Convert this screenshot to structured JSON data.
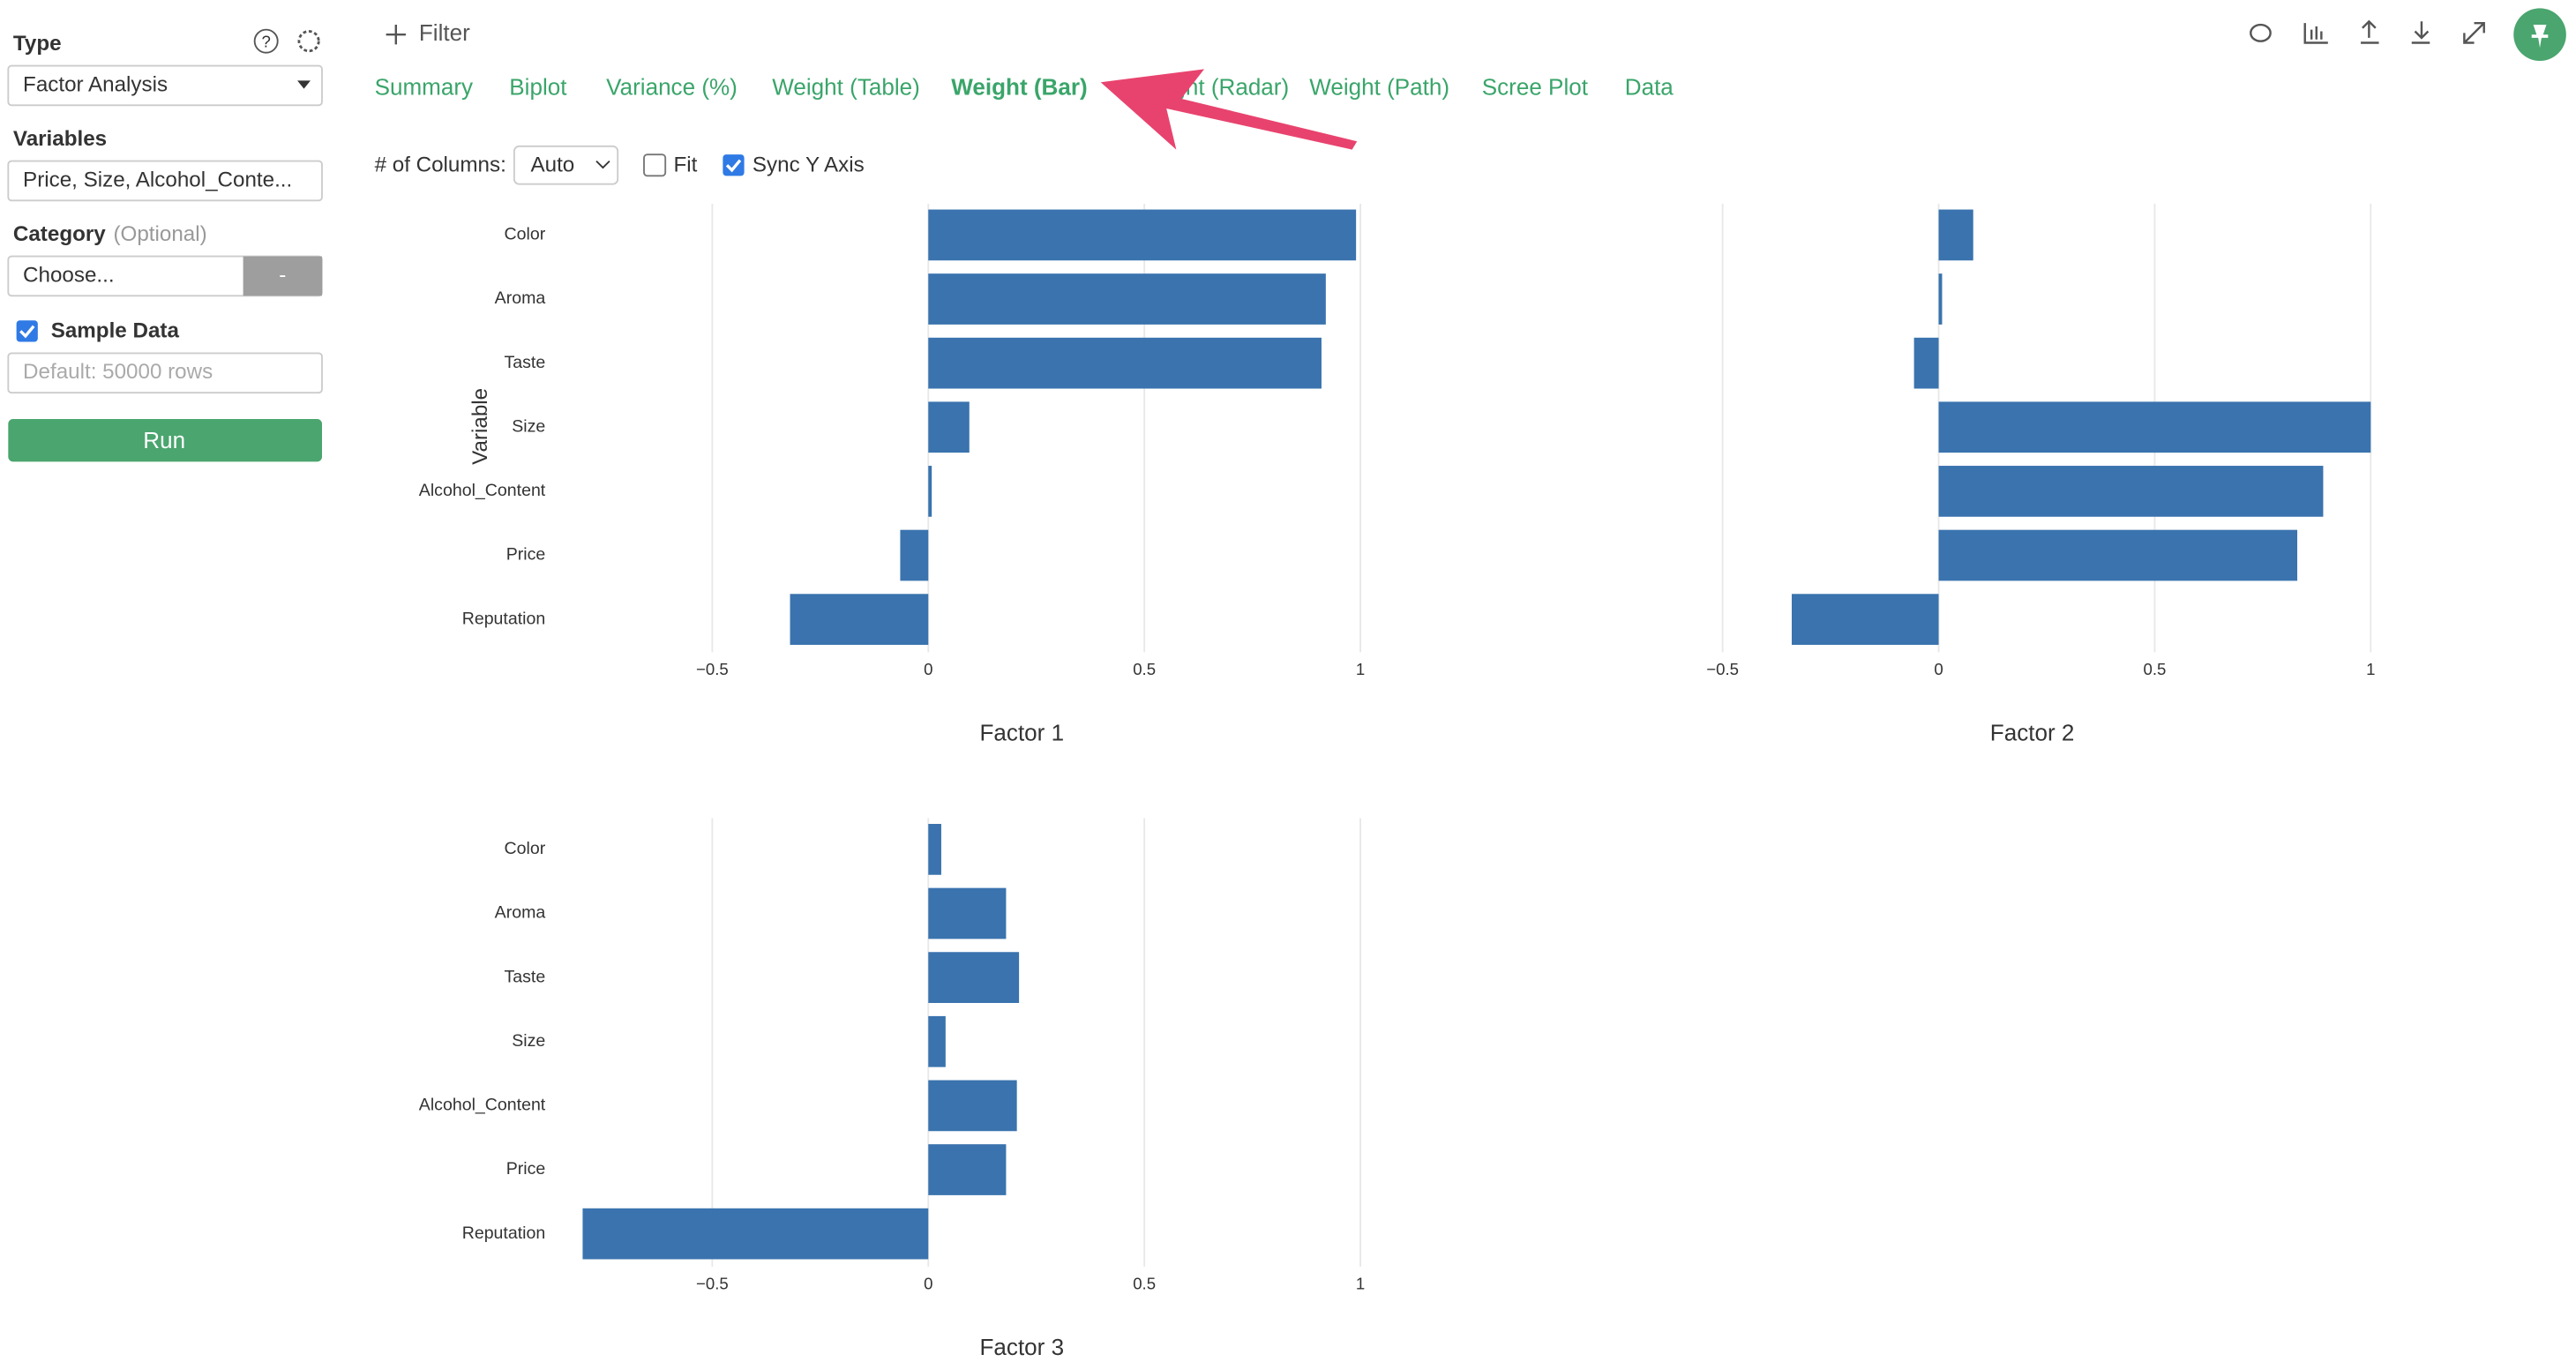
{
  "ui": {
    "sidebar": {
      "type_label": "Type",
      "type_value": "Factor Analysis",
      "variables_label": "Variables",
      "variables_value": "Price, Size, Alcohol_Conte...",
      "category_label": "Category",
      "category_optional": "(Optional)",
      "category_value": "Choose...",
      "category_button": "-",
      "sample_label": "Sample Data",
      "sample_placeholder": "Default: 50000 rows",
      "run": "Run"
    },
    "filter": "Filter",
    "tabs": [
      "Summary",
      "Biplot",
      "Variance (%)",
      "Weight (Table)",
      "Weight (Bar)",
      "Weight (Radar)",
      "Weight (Path)",
      "Scree Plot",
      "Data"
    ],
    "columns_label": "# of Columns:",
    "columns_value": "Auto",
    "fit": "Fit",
    "sync": "Sync Y Axis"
  },
  "chart_data": [
    {
      "type": "bar",
      "orientation": "horizontal",
      "title": "Factor 1",
      "y_label": "Variable",
      "color": "#3a73ae",
      "categories": [
        "Color",
        "Aroma",
        "Taste",
        "Size",
        "Alcohol_Content",
        "Price",
        "Reputation"
      ],
      "values": [
        0.99,
        0.92,
        0.91,
        0.095,
        0.008,
        -0.065,
        -0.32
      ],
      "xlim": [
        -0.85,
        1.05
      ],
      "xticks": [
        {
          "value": -0.5,
          "label": "−0.5"
        },
        0,
        0.5,
        1
      ],
      "grid": true
    },
    {
      "type": "bar",
      "orientation": "horizontal",
      "title": "Factor 2",
      "color": "#3a73ae",
      "values": [
        0.08,
        0.008,
        -0.057,
        1.0,
        0.89,
        0.83,
        -0.34
      ],
      "xlim": [
        -0.85,
        1.05
      ],
      "xticks": [
        {
          "value": -0.5,
          "label": "−0.5"
        },
        0,
        0.5,
        1
      ],
      "grid": true
    },
    {
      "type": "bar",
      "orientation": "horizontal",
      "title": "Factor 3",
      "color": "#3a73ae",
      "categories": [
        "Color",
        "Aroma",
        "Taste",
        "Size",
        "Alcohol_Content",
        "Price",
        "Reputation"
      ],
      "values": [
        0.03,
        0.18,
        0.21,
        0.04,
        0.205,
        0.18,
        -0.8
      ],
      "xlim": [
        -0.85,
        1.05
      ],
      "xticks": [
        {
          "value": -0.5,
          "label": "−0.5"
        },
        0,
        0.5,
        1
      ],
      "grid": true
    }
  ]
}
